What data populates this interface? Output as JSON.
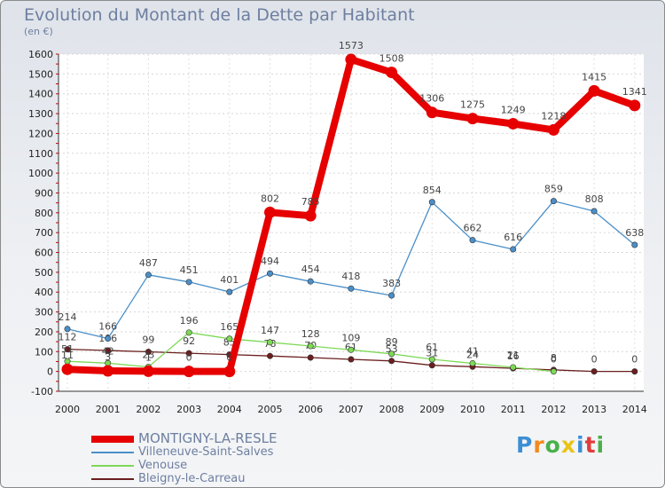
{
  "title": "Evolution du Montant de la Dette par Habitant",
  "subtitle": "(en €)",
  "brand": {
    "text": "Proxiti",
    "colors": [
      "#3c8fd4",
      "#f08a1e",
      "#49b04a",
      "#e8c417",
      "#3c8fd4",
      "#e23b3b",
      "#49b04a"
    ]
  },
  "chart_data": {
    "type": "line",
    "title": "Evolution du Montant de la Dette par Habitant",
    "ylabel": "(en €)",
    "xlabel": "",
    "x": [
      "2000",
      "2001",
      "2002",
      "2003",
      "2004",
      "2005",
      "2006",
      "2007",
      "2008",
      "2009",
      "2010",
      "2011",
      "2012",
      "2013",
      "2014"
    ],
    "ylim": [
      -100,
      1600
    ],
    "yticks": [
      -100,
      0,
      100,
      200,
      300,
      400,
      500,
      600,
      700,
      800,
      900,
      1000,
      1100,
      1200,
      1300,
      1400,
      1500,
      1600
    ],
    "grid": true,
    "legend_position": "bottom-left",
    "series": [
      {
        "name": "Bleigny-le-Carreau",
        "color": "#6b1e1e",
        "values": [
          112,
          106,
          99,
          92,
          85,
          78,
          70,
          61,
          53,
          31,
          24,
          16,
          8,
          0,
          0
        ]
      },
      {
        "name": "Venouse",
        "color": "#7ed957",
        "values": [
          51,
          42,
          23,
          196,
          165,
          147,
          128,
          109,
          89,
          61,
          41,
          21,
          0,
          null,
          null
        ]
      },
      {
        "name": "Villeneuve-Saint-Salves",
        "color": "#4a8fc9",
        "values": [
          214,
          166,
          487,
          451,
          401,
          494,
          454,
          418,
          383,
          854,
          662,
          616,
          859,
          808,
          638
        ]
      },
      {
        "name": "MONTIGNY-LA-RESLE",
        "color": "#e60000",
        "values": [
          11,
          3,
          1,
          0,
          0,
          802,
          785,
          1573,
          1508,
          1306,
          1275,
          1249,
          1218,
          1415,
          1341
        ]
      }
    ],
    "labels": {
      "Bleigny-le-Carreau": [
        "112",
        "106",
        "99",
        "92",
        "85",
        "78",
        "70",
        "61",
        "53",
        "31",
        "24",
        "16",
        "8",
        "0",
        "0"
      ],
      "Venouse": [
        "51",
        "42",
        "23",
        "196",
        "165",
        "147",
        "128",
        "109",
        "89",
        "61",
        "41",
        "21",
        "0",
        "",
        ""
      ],
      "Villeneuve-Saint-Salves": [
        "214",
        "166",
        "487",
        "451",
        "401",
        "494",
        "454",
        "418",
        "383",
        "854",
        "662",
        "616",
        "859",
        "808",
        "638"
      ],
      "MONTIGNY-LA-RESLE": [
        "11",
        "3",
        "1",
        "0",
        "0",
        "802",
        "785",
        "1573",
        "1508",
        "1306",
        "1275",
        "1249",
        "1218",
        "1415",
        "1341"
      ]
    }
  },
  "legend": [
    {
      "name": "MONTIGNY-LA-RESLE",
      "color": "#e60000",
      "thick": true
    },
    {
      "name": "Villeneuve-Saint-Salves",
      "color": "#4a8fc9",
      "thick": false
    },
    {
      "name": "Venouse",
      "color": "#7ed957",
      "thick": false
    },
    {
      "name": "Bleigny-le-Carreau",
      "color": "#6b1e1e",
      "thick": false
    }
  ]
}
